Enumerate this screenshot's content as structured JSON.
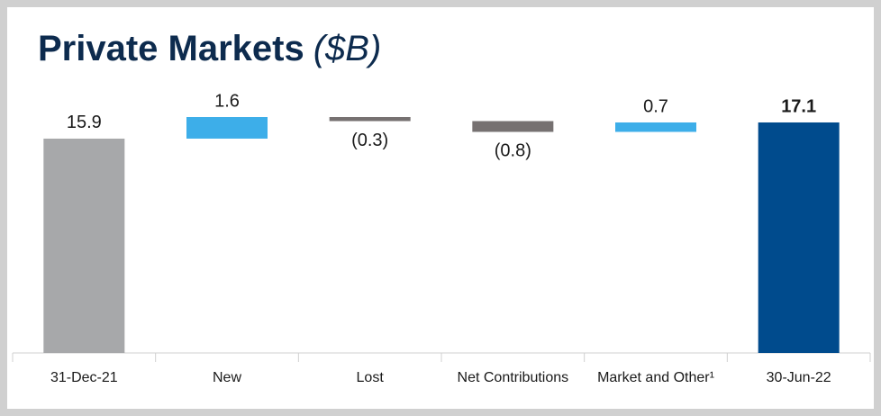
{
  "chart_data": {
    "type": "waterfall",
    "title": "Private Markets",
    "subtitle": "($B)",
    "categories": [
      "31-Dec-21",
      "New",
      "Lost",
      "Net Contributions",
      "Market and Other¹",
      "30-Jun-22"
    ],
    "values": [
      15.9,
      1.6,
      -0.3,
      -0.8,
      0.7,
      17.1
    ],
    "value_labels": [
      "15.9",
      "1.6",
      "(0.3)",
      "(0.8)",
      "0.7",
      "17.1"
    ],
    "colors": [
      "#a7a8aa",
      "#3daee9",
      "#767171",
      "#767171",
      "#3daee9",
      "#004b8d"
    ]
  }
}
